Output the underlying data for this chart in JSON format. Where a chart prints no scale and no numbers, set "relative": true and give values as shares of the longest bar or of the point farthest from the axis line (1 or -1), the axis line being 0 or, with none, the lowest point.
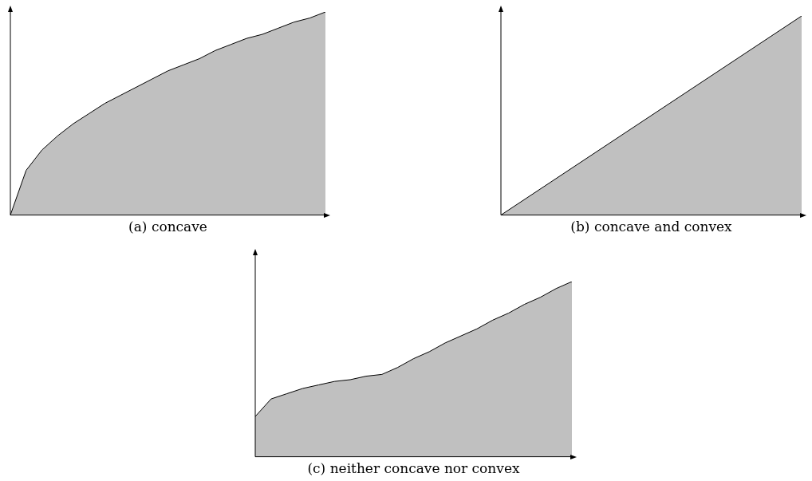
{
  "chart_data": [
    {
      "type": "area",
      "title": "(a) concave",
      "relative": true,
      "tick_labels": false,
      "categories": [
        null,
        null,
        null,
        null,
        null,
        null,
        null,
        null,
        null,
        null,
        null,
        null,
        null,
        null,
        null,
        null,
        null,
        null,
        null,
        null,
        null
      ],
      "series": [
        {
          "color": "#c0c0c0",
          "values": [
            0,
            0.22,
            0.32,
            0.39,
            0.45,
            0.5,
            0.55,
            0.59,
            0.63,
            0.67,
            0.71,
            0.74,
            0.77,
            0.81,
            0.84,
            0.87,
            0.89,
            0.92,
            0.95,
            0.97,
            1
          ]
        }
      ]
    },
    {
      "type": "area",
      "title": "(b) concave and convex",
      "relative": true,
      "tick_labels": false,
      "categories": [
        null,
        null
      ],
      "series": [
        {
          "color": "#c0c0c0",
          "values": [
            0,
            1
          ]
        }
      ]
    },
    {
      "type": "area",
      "title": "(c) neither concave nor convex",
      "relative": true,
      "tick_labels": false,
      "categories": [
        null,
        null,
        null,
        null,
        null,
        null,
        null,
        null,
        null,
        null,
        null,
        null,
        null,
        null,
        null,
        null,
        null,
        null,
        null,
        null,
        null
      ],
      "series": [
        {
          "color": "#c0c0c0",
          "values": [
            0.23,
            0.33,
            0.36,
            0.39,
            0.41,
            0.43,
            0.44,
            0.46,
            0.47,
            0.51,
            0.56,
            0.6,
            0.65,
            0.69,
            0.73,
            0.78,
            0.82,
            0.87,
            0.91,
            0.96,
            1
          ]
        }
      ]
    }
  ]
}
